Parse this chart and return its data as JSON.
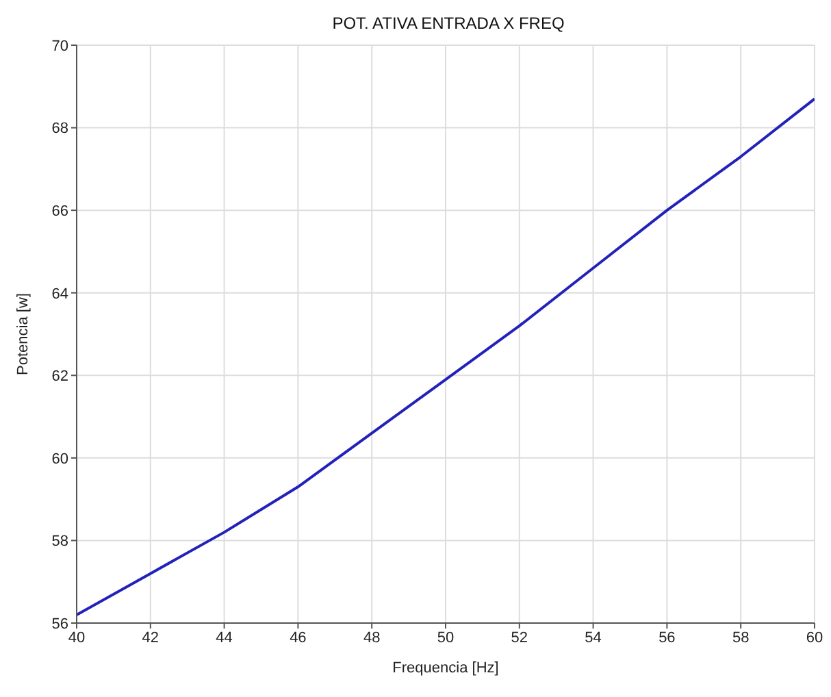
{
  "chart_data": {
    "type": "line",
    "title": "POT. ATIVA ENTRADA X FREQ",
    "xlabel": "Frequencia [Hz]",
    "ylabel": "Potencia [w]",
    "x": [
      40,
      42,
      44,
      46,
      48,
      50,
      52,
      54,
      56,
      58,
      60
    ],
    "series": [
      {
        "color": "#2222bb",
        "values": [
          56.2,
          57.2,
          58.2,
          59.3,
          60.6,
          61.9,
          63.2,
          64.6,
          66.0,
          67.3,
          68.7
        ]
      }
    ],
    "xlim": [
      40,
      60
    ],
    "xticks": [
      40,
      42,
      44,
      46,
      48,
      50,
      52,
      54,
      56,
      58,
      60
    ],
    "ylim": [
      56,
      70
    ],
    "yticks": [
      56,
      58,
      60,
      62,
      64,
      66,
      68,
      70
    ],
    "grid": true,
    "marker": "none",
    "line_style": "solid"
  }
}
